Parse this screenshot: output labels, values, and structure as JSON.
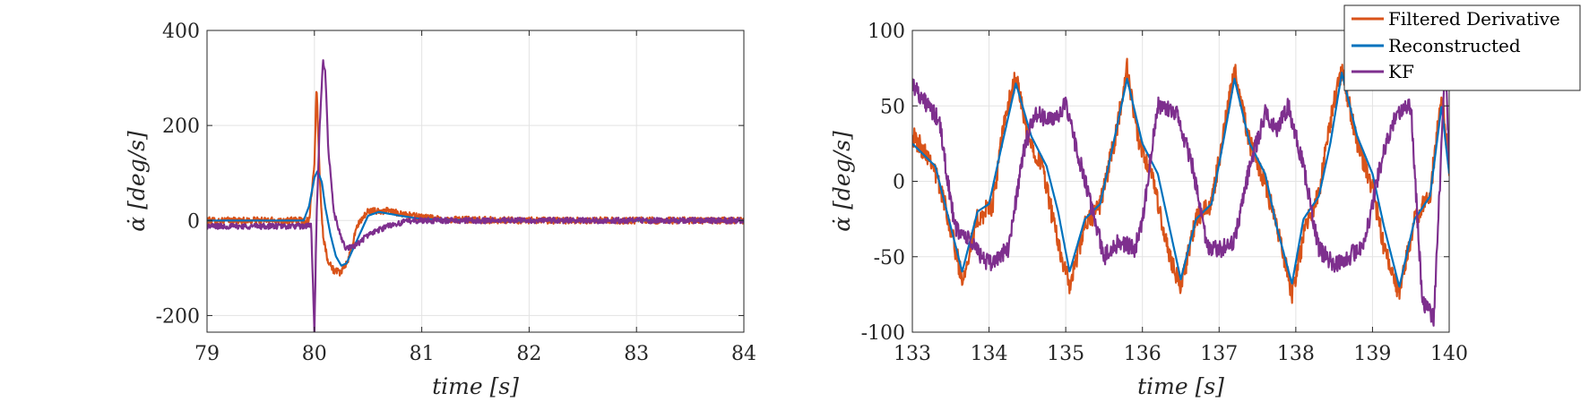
{
  "chart_data": [
    {
      "type": "line",
      "xlabel": "time [s]",
      "ylabel": "α̇ [deg/s]",
      "xlim": [
        79,
        84
      ],
      "ylim": [
        -235,
        400
      ],
      "xticks": [
        79,
        80,
        81,
        82,
        83,
        84
      ],
      "yticks": [
        -200,
        0,
        200,
        400
      ],
      "xtick_labels": [
        "79",
        "80",
        "81",
        "82",
        "83",
        "84"
      ],
      "ytick_labels": [
        "-200",
        "0",
        "200",
        "400"
      ],
      "grid": true,
      "legend": null,
      "series": [
        {
          "name": "Filtered Derivative",
          "color": "#D95319",
          "noise": 7,
          "x": [
            79.0,
            79.6,
            79.95,
            80.0,
            80.02,
            80.05,
            80.08,
            80.12,
            80.18,
            80.25,
            80.32,
            80.4,
            80.5,
            80.7,
            80.9,
            81.2,
            82.0,
            82.6,
            83.0,
            83.6,
            84.0
          ],
          "y": [
            0,
            0,
            0,
            120,
            285,
            90,
            -30,
            -80,
            -105,
            -110,
            -80,
            -10,
            20,
            20,
            10,
            2,
            0,
            0,
            0,
            0,
            0
          ]
        },
        {
          "name": "Reconstructed",
          "color": "#0072BD",
          "noise": 0,
          "x": [
            79.0,
            79.9,
            79.95,
            80.0,
            80.03,
            80.07,
            80.1,
            80.15,
            80.2,
            80.25,
            80.3,
            80.4,
            80.5,
            80.6,
            80.8,
            81.0,
            81.5,
            84.0
          ],
          "y": [
            0,
            0,
            30,
            90,
            105,
            80,
            30,
            -30,
            -75,
            -95,
            -90,
            -40,
            10,
            18,
            10,
            3,
            0,
            0
          ]
        },
        {
          "name": "KF",
          "color": "#7E2F8E",
          "noise": 6,
          "x": [
            79.0,
            79.9,
            79.97,
            80.0,
            80.02,
            80.05,
            80.08,
            80.1,
            80.13,
            80.18,
            80.25,
            80.3,
            80.4,
            80.5,
            80.7,
            80.9,
            81.0,
            81.5,
            82.0,
            82.6,
            83.0,
            84.0
          ],
          "y": [
            -12,
            -12,
            -10,
            -240,
            0,
            200,
            335,
            320,
            150,
            20,
            -40,
            -60,
            -50,
            -30,
            -10,
            0,
            0,
            0,
            0,
            0,
            0,
            0
          ]
        }
      ]
    },
    {
      "type": "line",
      "xlabel": "time [s]",
      "ylabel": "α̇ [deg/s]",
      "xlim": [
        133,
        140
      ],
      "ylim": [
        -100,
        100
      ],
      "xticks": [
        133,
        134,
        135,
        136,
        137,
        138,
        139,
        140
      ],
      "yticks": [
        -100,
        -50,
        0,
        50,
        100
      ],
      "xtick_labels": [
        "133",
        "134",
        "135",
        "136",
        "137",
        "138",
        "139",
        "140"
      ],
      "ytick_labels": [
        "-100",
        "-50",
        "0",
        "50",
        "100"
      ],
      "grid": true,
      "legend": "top-right",
      "series": [
        {
          "name": "Filtered Derivative",
          "color": "#D95319",
          "noise": 7,
          "x": [
            133.0,
            133.25,
            133.45,
            133.65,
            133.85,
            134.05,
            134.2,
            134.35,
            134.5,
            134.7,
            134.85,
            135.05,
            135.25,
            135.45,
            135.65,
            135.8,
            135.95,
            136.15,
            136.3,
            136.5,
            136.7,
            136.9,
            137.05,
            137.2,
            137.4,
            137.6,
            137.8,
            137.95,
            138.15,
            138.3,
            138.45,
            138.6,
            138.8,
            139.0,
            139.15,
            139.35,
            139.55,
            139.75,
            139.9,
            140.0
          ],
          "y": [
            30,
            15,
            -20,
            -65,
            -25,
            -15,
            40,
            70,
            30,
            10,
            -30,
            -70,
            -30,
            -15,
            30,
            75,
            25,
            0,
            -40,
            -70,
            -25,
            -15,
            30,
            75,
            25,
            0,
            -40,
            -75,
            -25,
            -10,
            40,
            75,
            25,
            -5,
            -45,
            -75,
            -25,
            -10,
            60,
            10
          ]
        },
        {
          "name": "Reconstructed",
          "color": "#0072BD",
          "noise": 0,
          "x": [
            133.0,
            133.3,
            133.5,
            133.65,
            133.85,
            134.0,
            134.15,
            134.35,
            134.55,
            134.75,
            134.9,
            135.05,
            135.25,
            135.45,
            135.6,
            135.8,
            136.0,
            136.2,
            136.35,
            136.5,
            136.7,
            136.9,
            137.05,
            137.2,
            137.4,
            137.6,
            137.75,
            137.95,
            138.1,
            138.3,
            138.45,
            138.6,
            138.8,
            139.0,
            139.15,
            139.35,
            139.55,
            139.75,
            139.9,
            140.0
          ],
          "y": [
            25,
            10,
            -30,
            -60,
            -20,
            -15,
            20,
            65,
            30,
            10,
            -20,
            -60,
            -25,
            -15,
            20,
            68,
            25,
            5,
            -30,
            -65,
            -25,
            -15,
            25,
            68,
            25,
            5,
            -30,
            -68,
            -25,
            -10,
            25,
            72,
            30,
            5,
            -30,
            -70,
            -25,
            -10,
            50,
            5
          ]
        },
        {
          "name": "KF",
          "color": "#7E2F8E",
          "noise": 6,
          "x": [
            133.0,
            133.2,
            133.35,
            133.55,
            133.75,
            134.0,
            134.25,
            134.45,
            134.6,
            134.8,
            135.0,
            135.25,
            135.5,
            135.7,
            135.9,
            136.0,
            136.2,
            136.45,
            136.65,
            136.85,
            137.0,
            137.2,
            137.4,
            137.6,
            137.75,
            137.9,
            138.1,
            138.3,
            138.5,
            138.7,
            138.9,
            139.1,
            139.3,
            139.5,
            139.65,
            139.8,
            139.95,
            140.0
          ],
          "y": [
            65,
            50,
            40,
            -30,
            -40,
            -55,
            -45,
            20,
            45,
            40,
            50,
            0,
            -50,
            -40,
            -45,
            -25,
            50,
            45,
            10,
            -45,
            -45,
            -40,
            10,
            45,
            35,
            50,
            10,
            -45,
            -55,
            -50,
            -40,
            10,
            45,
            50,
            -80,
            -90,
            80,
            15
          ]
        }
      ]
    }
  ],
  "legend": {
    "items": [
      {
        "label": "Filtered Derivative",
        "color": "#D95319"
      },
      {
        "label": "Reconstructed",
        "color": "#0072BD"
      },
      {
        "label": "KF",
        "color": "#7E2F8E"
      }
    ]
  }
}
